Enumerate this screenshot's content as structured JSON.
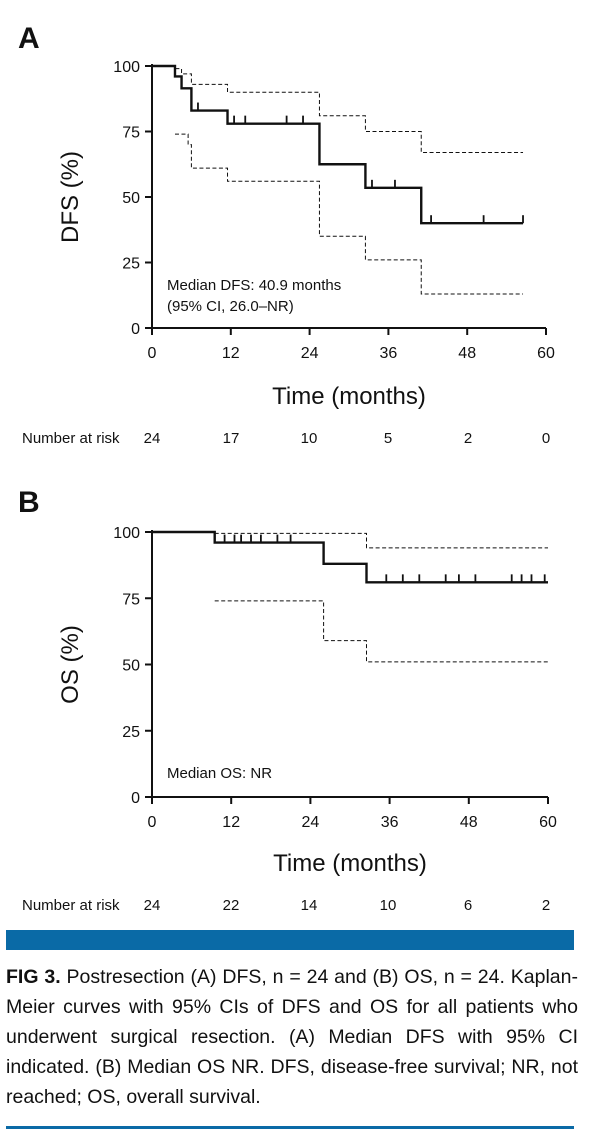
{
  "chart_data": [
    {
      "type": "line",
      "panel": "A",
      "ylabel": "DFS (%)",
      "xlabel": "Time (months)",
      "xlim": [
        0,
        60
      ],
      "ylim": [
        0,
        100
      ],
      "xticks": [
        "0",
        "12",
        "24",
        "36",
        "48",
        "60"
      ],
      "yticks": [
        "0",
        "25",
        "50",
        "75",
        "100"
      ],
      "grid": false,
      "annotation": [
        "Median DFS: 40.9 months",
        "(95% CI, 26.0–NR)"
      ],
      "risk_label": "Number at risk",
      "risk_values": [
        "24",
        "17",
        "10",
        "5",
        "2",
        "0"
      ],
      "series": [
        {
          "role": "estimate",
          "style": "solid",
          "x": [
            0,
            3.5,
            4.5,
            6,
            11.5,
            25.5,
            32.5,
            41,
            56.5
          ],
          "y": [
            100,
            96,
            91.5,
            83,
            78,
            62.5,
            53.5,
            40,
            40
          ]
        },
        {
          "role": "upper",
          "style": "dashed",
          "x": [
            0,
            3.5,
            4.5,
            6,
            11.5,
            25.5,
            32.5,
            41,
            56.5
          ],
          "y": [
            100,
            99,
            97,
            93,
            90,
            81,
            75,
            67,
            67
          ]
        },
        {
          "role": "lower",
          "style": "dashed",
          "x": [
            3.5,
            5.5,
            6,
            11.5,
            25.5,
            32.5,
            41,
            56.5
          ],
          "y": [
            74,
            70,
            61,
            56,
            35,
            26,
            13,
            13
          ]
        }
      ],
      "censor_x": [
        7,
        12.5,
        14.2,
        20.5,
        23,
        33.5,
        37,
        42.5,
        50.5,
        56.5
      ],
      "censor_estimate": [
        83,
        78,
        78,
        78,
        78,
        53.5,
        53.5,
        40,
        40,
        40
      ]
    },
    {
      "type": "line",
      "panel": "B",
      "ylabel": "OS (%)",
      "xlabel": "Time (months)",
      "xlim": [
        0,
        60
      ],
      "ylim": [
        0,
        100
      ],
      "xticks": [
        "0",
        "12",
        "24",
        "36",
        "48",
        "60"
      ],
      "yticks": [
        "0",
        "25",
        "50",
        "75",
        "100"
      ],
      "grid": false,
      "annotation": [
        "Median OS: NR"
      ],
      "risk_label": "Number at risk",
      "risk_values": [
        "24",
        "22",
        "14",
        "10",
        "6",
        "2"
      ],
      "series": [
        {
          "role": "estimate",
          "style": "solid",
          "x": [
            0,
            9.5,
            26,
            32.5,
            60
          ],
          "y": [
            100,
            96,
            88,
            81,
            81
          ]
        },
        {
          "role": "upper",
          "style": "dashed",
          "x": [
            9.5,
            26,
            32.5,
            60
          ],
          "y": [
            99.5,
            99.5,
            94,
            94
          ]
        },
        {
          "role": "lower",
          "style": "dashed",
          "x": [
            9.5,
            26,
            32.5,
            60
          ],
          "y": [
            74,
            59,
            51,
            51
          ]
        }
      ],
      "censor_x": [
        11,
        12.5,
        13.5,
        15,
        16.5,
        19,
        21,
        35.5,
        38,
        40.5,
        44.5,
        46.5,
        49,
        54.5,
        56,
        57.5,
        59.5
      ],
      "censor_estimate": [
        96,
        96,
        96,
        96,
        96,
        96,
        96,
        81,
        81,
        81,
        81,
        81,
        81,
        81,
        81,
        81,
        81
      ]
    }
  ],
  "caption": {
    "label": "FIG 3.",
    "text": "Postresection (A) DFS, n = 24 and (B) OS, n = 24. Kaplan-Meier curves with 95% CIs of DFS and OS for all patients who underwent surgical resection. (A) Median DFS with 95% CI indicated. (B) Median OS NR. DFS, disease-free survival; NR, not reached; OS, overall survival."
  },
  "colors": {
    "band": "#0a6aa6",
    "line": "#111111"
  }
}
